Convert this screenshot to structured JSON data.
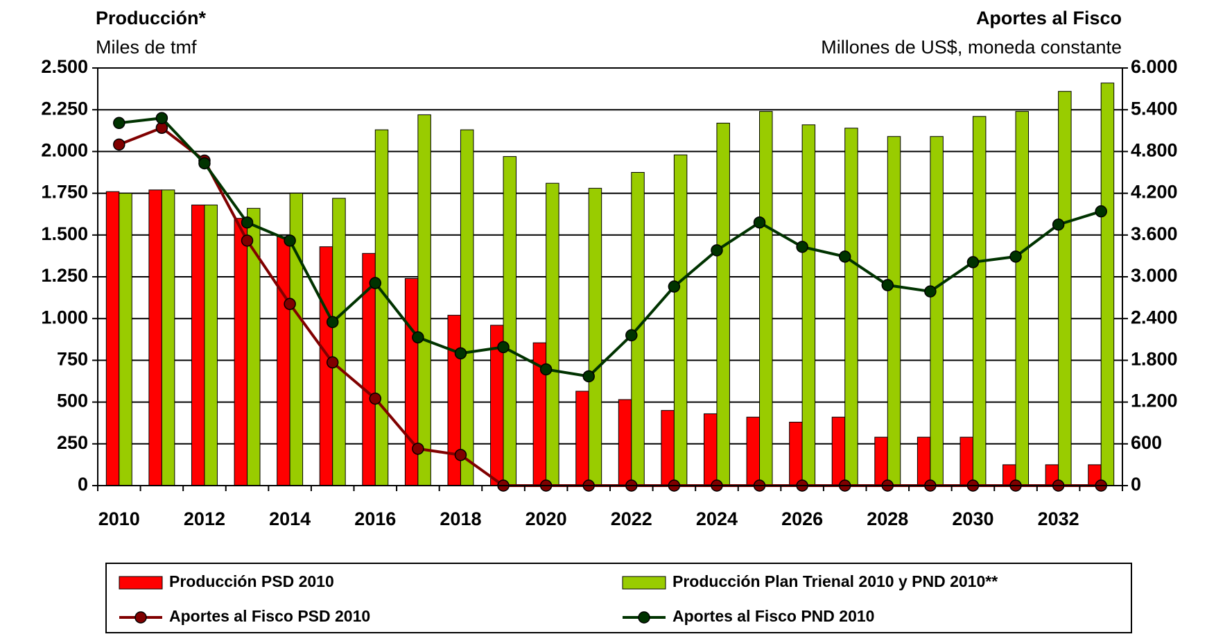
{
  "chart_data": {
    "type": "bar",
    "title": "Producción*",
    "subtitle": "Miles de tmf",
    "title_right": "Aportes al Fisco",
    "subtitle_right": "Millones de US$, moneda constante",
    "categories": [
      "2010",
      null,
      "2012",
      null,
      "2014",
      null,
      "2016",
      null,
      "2018",
      null,
      "2020",
      null,
      "2022",
      null,
      "2024",
      null,
      "2026",
      null,
      "2028",
      null,
      "2030",
      null,
      "2032",
      null
    ],
    "series": [
      {
        "name": "Producción PSD 2010",
        "type": "bar",
        "axis": "y",
        "color": "#ff0000",
        "values": [
          1760,
          1770,
          1680,
          1600,
          1490,
          1430,
          1390,
          1240,
          1020,
          960,
          855,
          565,
          515,
          450,
          430,
          410,
          380,
          410,
          290,
          290,
          290,
          125,
          125,
          125
        ]
      },
      {
        "name": "Producción Plan Trienal 2010 y PND 2010**",
        "type": "bar",
        "axis": "y",
        "color": "#99cc00",
        "values": [
          1750,
          1770,
          1680,
          1660,
          1750,
          1720,
          2130,
          2220,
          2130,
          1970,
          1810,
          1780,
          1875,
          1980,
          2170,
          2240,
          2160,
          2140,
          2090,
          2090,
          2210,
          2240,
          2360,
          2410
        ]
      },
      {
        "name": "Aportes al Fisco PSD 2010",
        "type": "line",
        "axis": "y2",
        "color": "#800000",
        "values": [
          4900,
          5140,
          4670,
          3520,
          2610,
          1770,
          1250,
          530,
          440,
          0,
          0,
          0,
          0,
          0,
          0,
          0,
          0,
          0,
          0,
          0,
          0,
          0,
          0,
          0
        ]
      },
      {
        "name": "Aportes al Fisco PND 2010",
        "type": "line",
        "axis": "y2",
        "color": "#003300",
        "values": [
          5210,
          5280,
          4630,
          3780,
          3520,
          2350,
          2910,
          2130,
          1900,
          1990,
          1670,
          1570,
          2160,
          2860,
          3380,
          3780,
          3430,
          3290,
          2880,
          2790,
          3210,
          3290,
          3750,
          3940
        ]
      }
    ],
    "ylim": [
      0,
      2500
    ],
    "yticks": [
      0,
      250,
      500,
      750,
      {
        "value": 1000,
        "label": "1.000"
      },
      {
        "value": 1250,
        "label": "1.250"
      },
      {
        "value": 1500,
        "label": "1.500"
      },
      {
        "value": 1750,
        "label": "1.750"
      },
      {
        "value": 2000,
        "label": "2.000"
      },
      {
        "value": 2250,
        "label": "2.250"
      },
      {
        "value": 2500,
        "label": "2.500"
      }
    ],
    "y2lim": [
      0,
      6000
    ],
    "y2ticks": [
      0,
      600,
      {
        "value": 1200,
        "label": "1.200"
      },
      {
        "value": 1800,
        "label": "1.800"
      },
      {
        "value": 2400,
        "label": "2.400"
      },
      {
        "value": 3000,
        "label": "3.000"
      },
      {
        "value": 3600,
        "label": "3.600"
      },
      {
        "value": 4200,
        "label": "4.200"
      },
      {
        "value": 4800,
        "label": "4.800"
      },
      {
        "value": 5400,
        "label": "5.400"
      },
      {
        "value": 6000,
        "label": "6.000"
      }
    ],
    "grid": true
  }
}
